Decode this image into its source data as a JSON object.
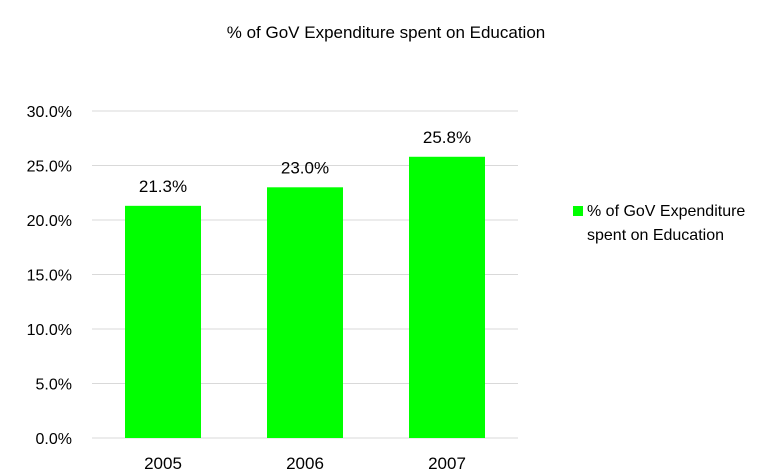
{
  "chart_data": {
    "type": "bar",
    "title": "% of GoV Expenditure spent on Education",
    "categories": [
      "2005",
      "2006",
      "2007"
    ],
    "series": [
      {
        "name": "% of GoV Expenditure spent on Education",
        "values": [
          21.3,
          23.0,
          25.8
        ],
        "color": "#00ff00"
      }
    ],
    "data_labels": [
      "21.3%",
      "23.0%",
      "25.8%"
    ],
    "ylim": [
      0,
      30
    ],
    "yticks": [
      0,
      5,
      10,
      15,
      20,
      25,
      30
    ],
    "ytick_labels": [
      "0.0%",
      "5.0%",
      "10.0%",
      "15.0%",
      "20.0%",
      "25.0%",
      "30.0%"
    ],
    "grid": true,
    "grid_color": "#d9d9d9",
    "legend": {
      "position": "right",
      "lines": [
        "% of GoV Expenditure",
        "spent on Education"
      ]
    }
  }
}
